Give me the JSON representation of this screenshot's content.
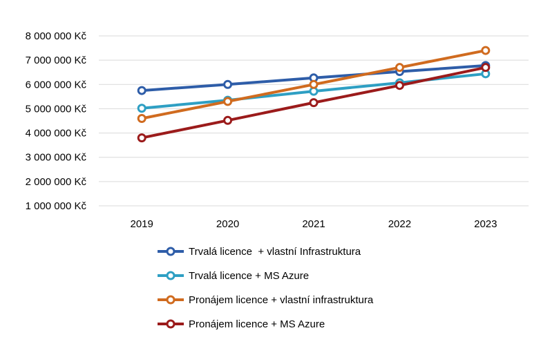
{
  "chart_data": {
    "type": "line",
    "categories": [
      "2019",
      "2020",
      "2021",
      "2022",
      "2023"
    ],
    "ylim": [
      1000000,
      8000000
    ],
    "y_ticks": [
      1000000,
      2000000,
      3000000,
      4000000,
      5000000,
      6000000,
      7000000,
      8000000
    ],
    "y_tick_labels": [
      "1 000 000 Kč",
      "2 000 000 Kč",
      "3 000 000 Kč",
      "4 000 000 Kč",
      "5 000 000 Kč",
      "6 000 000 Kč",
      "7 000 000 Kč",
      "8 000 000 Kč"
    ],
    "grid": true,
    "legend_position": "bottom",
    "series": [
      {
        "name": "Trvalá licence  + vlastní Infrastruktura",
        "color": "#2E5DA8",
        "values": [
          5750000,
          6000000,
          6270000,
          6530000,
          6780000
        ]
      },
      {
        "name": "Trvalá licence + MS Azure",
        "color": "#2E9FC3",
        "values": [
          5020000,
          5350000,
          5720000,
          6070000,
          6440000
        ]
      },
      {
        "name": "Pronájem licence + vlastní infrastruktura",
        "color": "#D06B1F",
        "values": [
          4600000,
          5300000,
          6000000,
          6700000,
          7400000
        ]
      },
      {
        "name": "Pronájem licence + MS Azure",
        "color": "#9B1B1B",
        "values": [
          3800000,
          4520000,
          5250000,
          5960000,
          6700000
        ]
      }
    ]
  }
}
